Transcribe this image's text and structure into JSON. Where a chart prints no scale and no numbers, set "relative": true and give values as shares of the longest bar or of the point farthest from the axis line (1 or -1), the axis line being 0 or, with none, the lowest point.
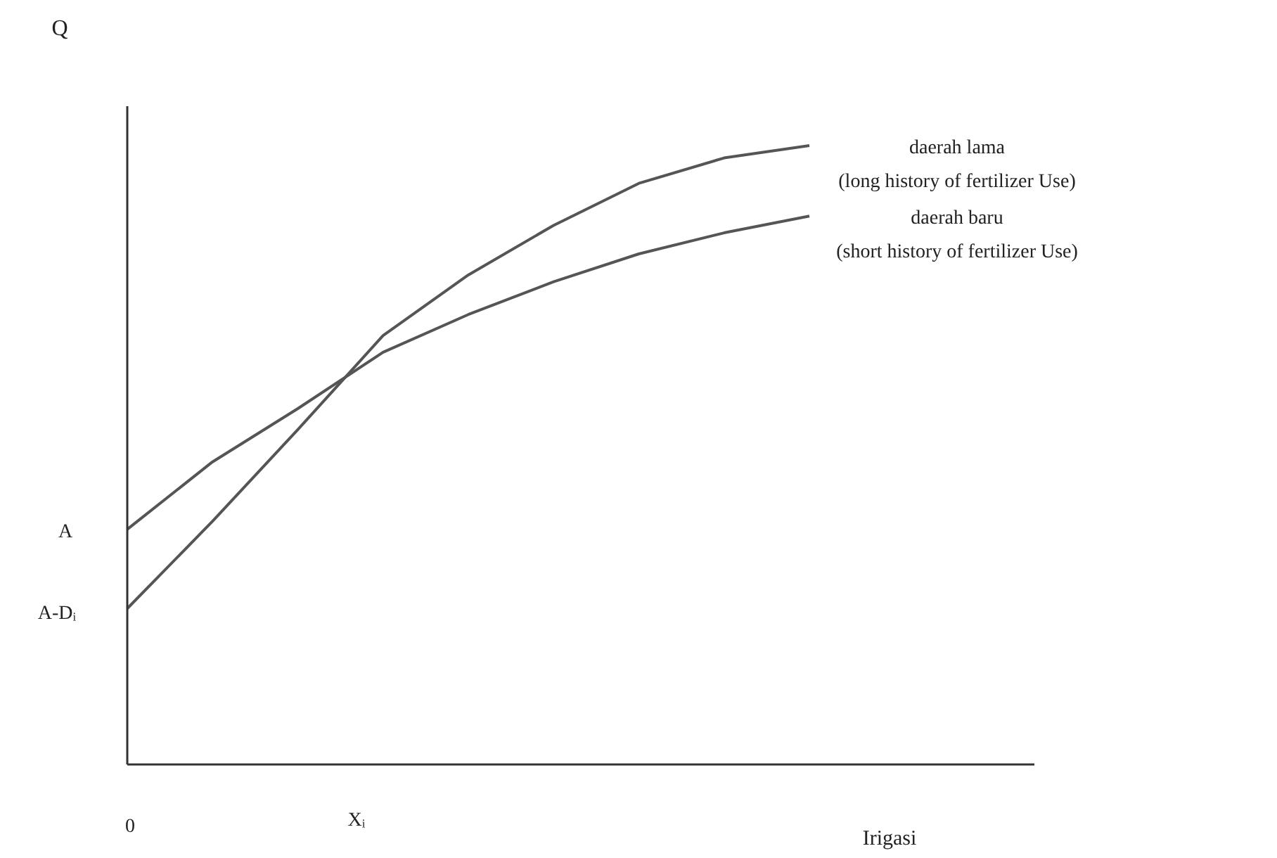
{
  "chart_data": {
    "type": "line",
    "relative": true,
    "xlabel": "Irigasi",
    "ylabel": "Q",
    "categories": [
      null,
      null,
      null,
      null,
      null,
      null,
      null,
      null,
      null
    ],
    "series": [
      {
        "name": "daerah lama\n(long history of fertilizer Use)",
        "color": "#555555",
        "values": [
          0.252,
          0.393,
          0.541,
          0.693,
          0.791,
          0.871,
          0.939,
          0.98,
          1
        ]
      },
      {
        "name": "daerah baru\n(short history of fertilizer Use)",
        "color": "#555555",
        "values": [
          0.38,
          0.489,
          0.575,
          0.666,
          0.727,
          0.78,
          0.825,
          0.859,
          0.886
        ]
      }
    ],
    "annotations": [
      "A",
      "A-Dᵢ",
      "0",
      "Xᵢ"
    ],
    "legend": false,
    "marker": "none",
    "line_style": "solid"
  }
}
